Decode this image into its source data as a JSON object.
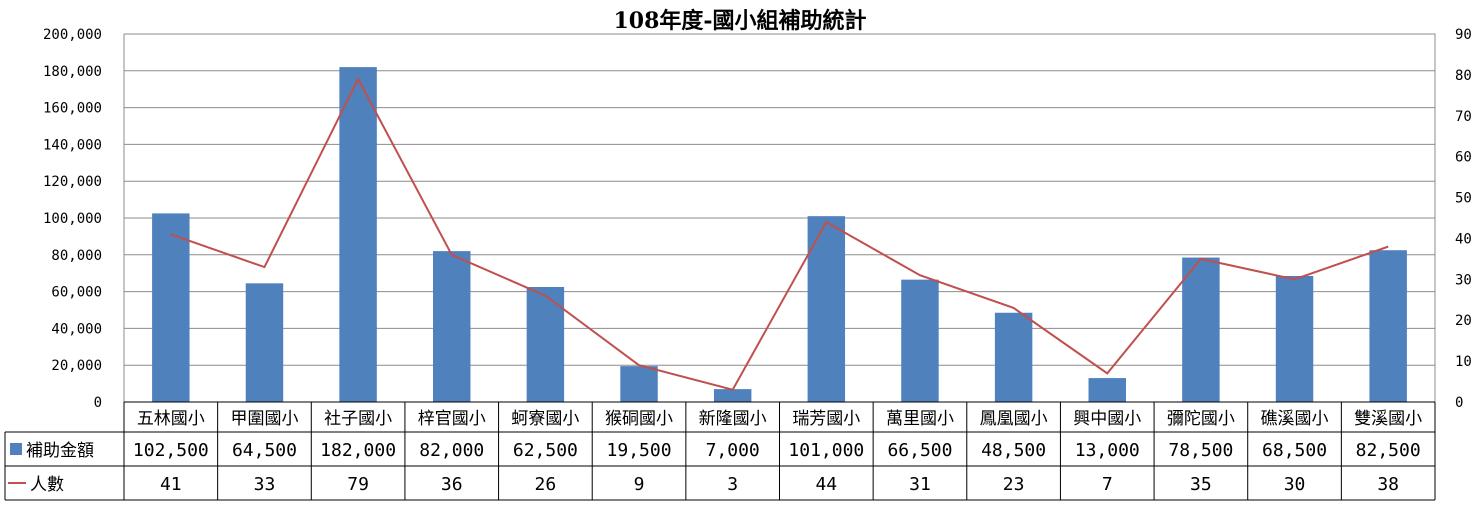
{
  "chart_data": {
    "type": "bar",
    "title": "108年度-國小組補助統計",
    "categories": [
      "五林國小",
      "甲圍國小",
      "社子國小",
      "梓官國小",
      "蚵寮國小",
      "猴硐國小",
      "新隆國小",
      "瑞芳國小",
      "萬里國小",
      "鳳凰國小",
      "興中國小",
      "彌陀國小",
      "礁溪國小",
      "雙溪國小"
    ],
    "series": [
      {
        "name": "補助金額",
        "type": "bar",
        "axis": "left",
        "color": "#4f81bd",
        "values": [
          102500,
          64500,
          182000,
          82000,
          62500,
          19500,
          7000,
          101000,
          66500,
          48500,
          13000,
          78500,
          68500,
          82500
        ],
        "display": [
          "102,500",
          "64,500",
          "182,000",
          "82,000",
          "62,500",
          "19,500",
          "7,000",
          "101,000",
          "66,500",
          "48,500",
          "13,000",
          "78,500",
          "68,500",
          "82,500"
        ]
      },
      {
        "name": "人數",
        "type": "line",
        "axis": "right",
        "color": "#c0504d",
        "values": [
          41,
          33,
          79,
          36,
          26,
          9,
          3,
          44,
          31,
          23,
          7,
          35,
          30,
          38
        ],
        "display": [
          "41",
          "33",
          "79",
          "36",
          "26",
          "9",
          "3",
          "44",
          "31",
          "23",
          "7",
          "35",
          "30",
          "38"
        ]
      }
    ],
    "y_left": {
      "min": 0,
      "max": 200000,
      "step": 20000,
      "tick_labels": [
        "0",
        "20,000",
        "40,000",
        "60,000",
        "80,000",
        "100,000",
        "120,000",
        "140,000",
        "160,000",
        "180,000",
        "200,000"
      ]
    },
    "y_right": {
      "min": 0,
      "max": 90,
      "step": 10,
      "tick_labels": [
        "0",
        "10",
        "20",
        "30",
        "40",
        "50",
        "60",
        "70",
        "80",
        "90"
      ]
    },
    "grid": true,
    "legend": "data-table"
  }
}
